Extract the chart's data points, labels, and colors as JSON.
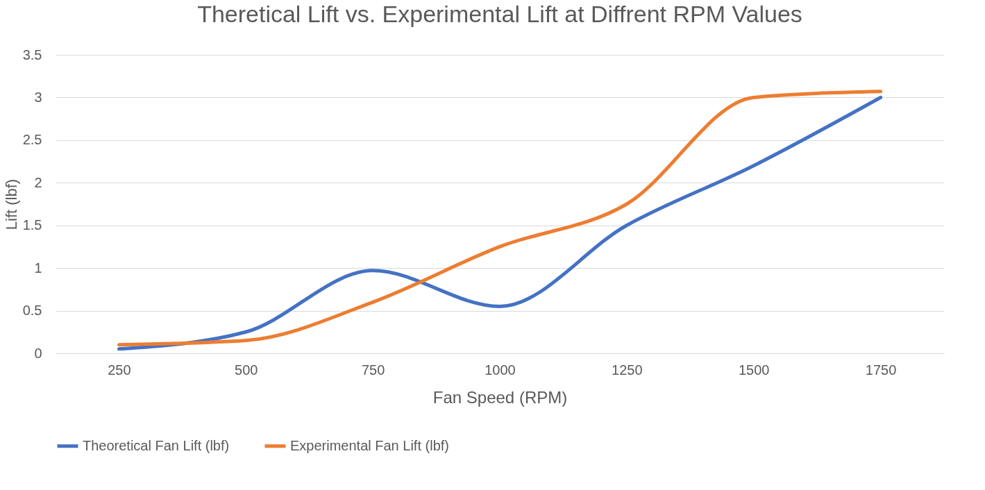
{
  "chart_data": {
    "type": "line",
    "title": "Theretical Lift vs. Experimental Lift at Diffrent RPM Values",
    "xlabel": "Fan Speed (RPM)",
    "ylabel": "Lift (lbf)",
    "categories": [
      "250",
      "500",
      "750",
      "1000",
      "1250",
      "1500",
      "1750"
    ],
    "series": [
      {
        "name": "Theoretical Fan Lift (lbf)",
        "color": "#4472c4",
        "values": [
          0.05,
          0.25,
          0.97,
          0.55,
          1.5,
          2.2,
          3.0
        ]
      },
      {
        "name": "Experimental Fan Lift (lbf)",
        "color": "#ed7d31",
        "values": [
          0.1,
          0.15,
          0.6,
          1.25,
          1.75,
          3.0,
          3.07
        ]
      }
    ],
    "ylim": [
      0,
      3.5
    ],
    "yticks": [
      0,
      0.5,
      1,
      1.5,
      2,
      2.5,
      3,
      3.5
    ],
    "grid": "y",
    "legend": "bottom",
    "marker": "none",
    "line_style": "solid"
  }
}
